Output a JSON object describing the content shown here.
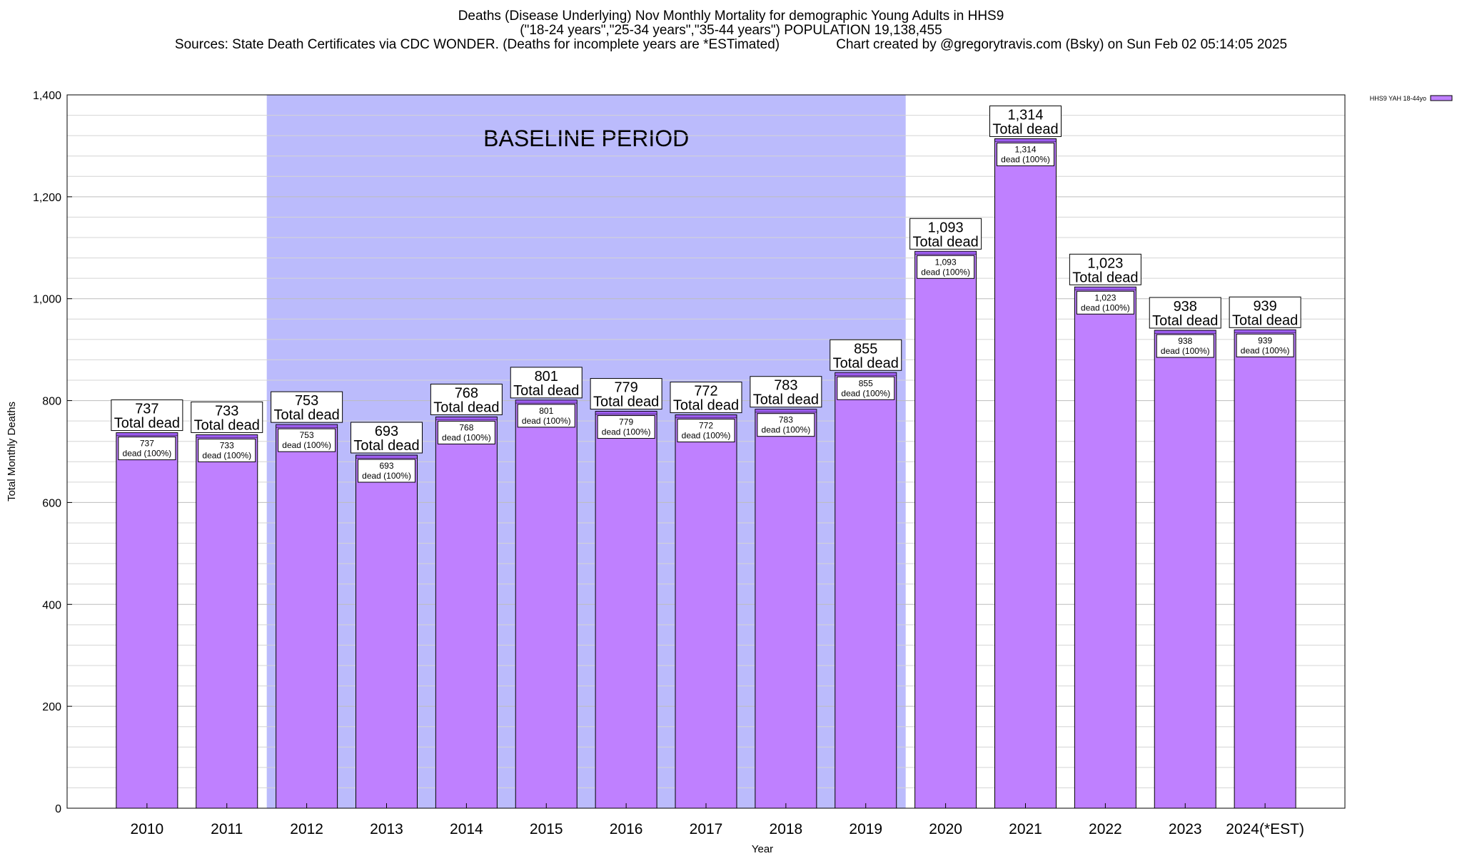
{
  "header": {
    "title_line1": "Deaths (Disease Underlying) Nov Monthly Mortality for demographic Young Adults in HHS9",
    "title_line2": "(\"18-24 years\",\"25-34 years\",\"35-44 years\") POPULATION 19,138,455",
    "title_line3": "Sources: State Death Certificates via CDC WONDER. (Deaths for incomplete years are *ESTimated)               Chart created by @gregorytravis.com (Bsky) on Sun Feb 02 05:14:05 2025"
  },
  "chart_data": {
    "type": "bar",
    "categories": [
      "2010",
      "2011",
      "2012",
      "2013",
      "2014",
      "2015",
      "2016",
      "2017",
      "2018",
      "2019",
      "2020",
      "2021",
      "2022",
      "2023",
      "2024(*EST)"
    ],
    "series": [
      {
        "name": "HHS9 YAH 18-44yo",
        "values": [
          737,
          733,
          753,
          693,
          768,
          801,
          779,
          772,
          783,
          855,
          1093,
          1314,
          1023,
          938,
          939
        ],
        "value_labels": [
          "737",
          "733",
          "753",
          "693",
          "768",
          "801",
          "779",
          "772",
          "783",
          "855",
          "1,093",
          "1,314",
          "1,023",
          "938",
          "939"
        ],
        "color": "#bf80ff"
      }
    ],
    "total_label_suffix": "Total dead",
    "inner_label_suffix": "dead (100%)",
    "xlabel": "Year",
    "ylabel": "Total Monthly Deaths",
    "ylim": [
      0,
      1400
    ],
    "yticks": [
      0,
      200,
      400,
      600,
      800,
      1000,
      1200,
      1400
    ],
    "ytick_labels": [
      "0",
      "200",
      "400",
      "600",
      "800",
      "1,000",
      "1,200",
      "1,400"
    ],
    "minor_grid_step": 40,
    "grid": true,
    "legend": "top-right",
    "baseline_period": {
      "label": "BASELINE PERIOD",
      "from_category": "2012",
      "to_category": "2019",
      "color": "#bbbbfc"
    },
    "colors": {
      "bar": "#bf80ff",
      "bar_top": "#9c5cf0",
      "shade": "#bbbbfc"
    }
  }
}
